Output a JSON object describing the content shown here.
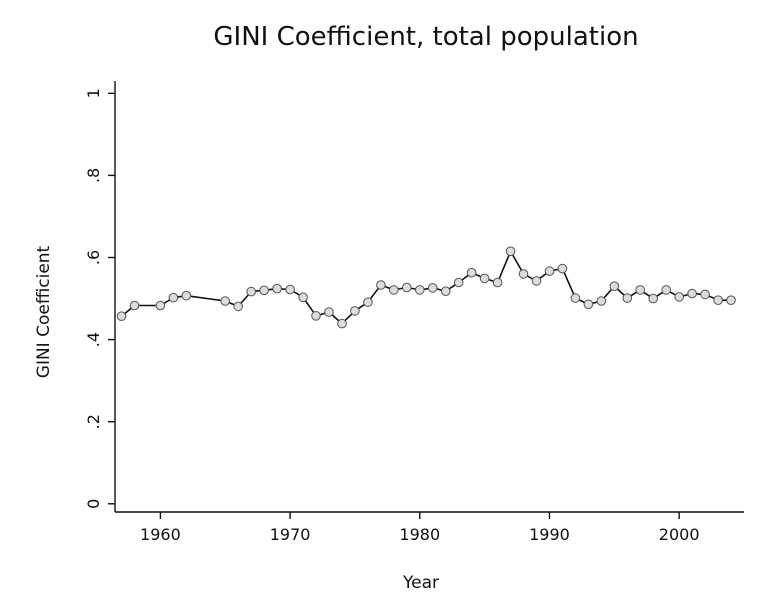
{
  "chart_data": {
    "type": "line",
    "title": "GINI Coefficient, total population",
    "xlabel": "Year",
    "ylabel": "GINI Coefficient",
    "xlim": [
      1956.5,
      2005
    ],
    "ylim": [
      -0.02,
      1.03
    ],
    "grid": false,
    "x_ticks": [
      1960,
      1970,
      1980,
      1990,
      2000
    ],
    "x_tick_labels": [
      "1960",
      "1970",
      "1980",
      "1990",
      "2000"
    ],
    "y_ticks": [
      0,
      0.2,
      0.4,
      0.6,
      0.8,
      1
    ],
    "y_tick_labels": [
      "0",
      ".2",
      ".4",
      ".6",
      ".8",
      "1"
    ],
    "series": [
      {
        "name": "GINI Coefficient",
        "x": [
          1957,
          1958,
          1960,
          1961,
          1962,
          1965,
          1966,
          1967,
          1968,
          1969,
          1970,
          1971,
          1972,
          1973,
          1974,
          1975,
          1976,
          1977,
          1978,
          1979,
          1980,
          1981,
          1982,
          1983,
          1984,
          1985,
          1986,
          1987,
          1988,
          1989,
          1990,
          1991,
          1992,
          1993,
          1994,
          1995,
          1996,
          1997,
          1998,
          1999,
          2000,
          2001,
          2002,
          2003,
          2004
        ],
        "values": [
          0.457,
          0.483,
          0.483,
          0.502,
          0.507,
          0.494,
          0.481,
          0.517,
          0.52,
          0.524,
          0.522,
          0.503,
          0.458,
          0.467,
          0.439,
          0.47,
          0.491,
          0.533,
          0.521,
          0.527,
          0.521,
          0.526,
          0.518,
          0.539,
          0.563,
          0.549,
          0.539,
          0.615,
          0.56,
          0.543,
          0.567,
          0.573,
          0.501,
          0.486,
          0.494,
          0.53,
          0.501,
          0.521,
          0.5,
          0.521,
          0.504,
          0.512,
          0.51,
          0.496,
          0.496
        ]
      }
    ]
  }
}
